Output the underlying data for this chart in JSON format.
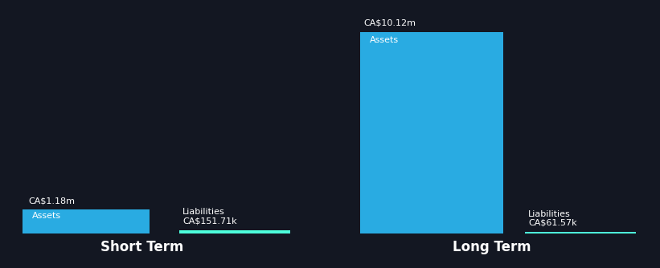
{
  "background_color": "#131722",
  "text_color": "#ffffff",
  "assets_color": "#29ABE2",
  "liabilities_color": "#4DFFDB",
  "short_term": {
    "label": "Short Term",
    "assets_value": 1.18,
    "assets_label": "CA$1.18m",
    "assets_inner_label": "Assets",
    "liabilities_value": 0.15171,
    "liabilities_label": "CA$151.71k",
    "liabilities_inner_label": "Liabilities"
  },
  "long_term": {
    "label": "Long Term",
    "assets_value": 10.12,
    "assets_label": "CA$10.12m",
    "assets_inner_label": "Assets",
    "liabilities_value": 0.06157,
    "liabilities_label": "CA$61.57k",
    "liabilities_inner_label": "Liabilities"
  },
  "label_fontsize": 8.0,
  "inner_label_fontsize": 8.0,
  "section_label_fontsize": 12
}
